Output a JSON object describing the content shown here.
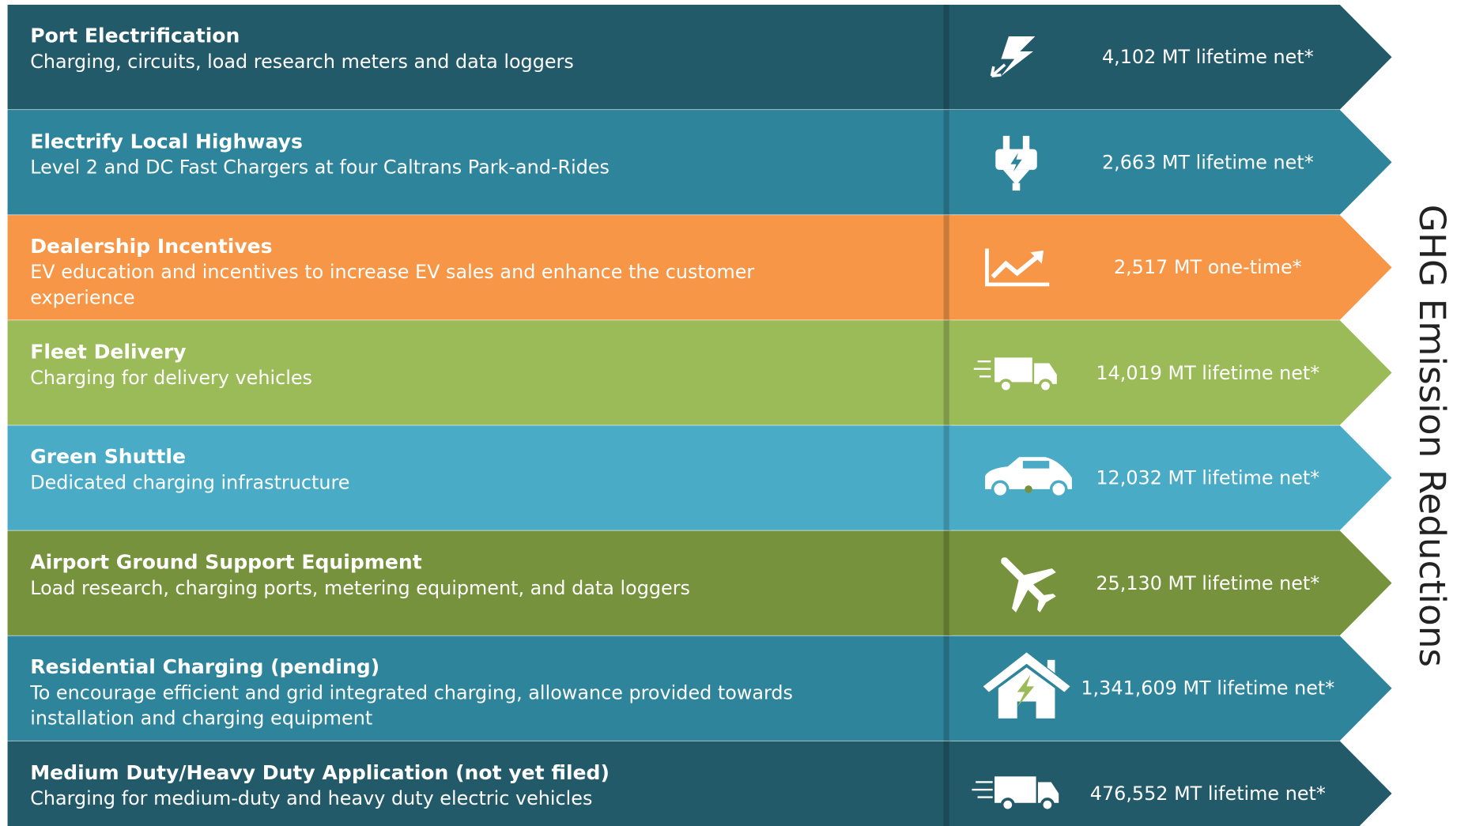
{
  "side_label": "GHG Emission Reductions",
  "rows": [
    {
      "title": "Port Electrification",
      "description": "Charging, circuits, load research meters and data loggers",
      "value": "4,102 MT lifetime net*",
      "color": "#235a6a"
    },
    {
      "title": "Electrify Local Highways",
      "description": "Level 2 and DC Fast Chargers at four Caltrans Park-and-Rides",
      "value": "2,663 MT lifetime net*",
      "color": "#2e849b"
    },
    {
      "title": "Dealership Incentives",
      "description": "EV education and incentives to increase EV sales and enhance the customer experience",
      "value": "2,517 MT one-time*",
      "color": "#f69646"
    },
    {
      "title": "Fleet Delivery",
      "description": "Charging for delivery vehicles",
      "value": "14,019 MT lifetime net*",
      "color": "#9bbb59"
    },
    {
      "title": "Green Shuttle",
      "description": "Dedicated charging infrastructure",
      "value": "12,032 MT lifetime net*",
      "color": "#4aabc6"
    },
    {
      "title": "Airport Ground Support Equipment",
      "description": "Load research, charging ports, metering equipment, and data loggers",
      "value": "25,130 MT lifetime net*",
      "color": "#76923c"
    },
    {
      "title": "Residential Charging (pending)",
      "description": "To encourage efficient and grid integrated charging, allowance provided towards installation and charging equipment",
      "value": "1,341,609 MT lifetime net*",
      "color": "#2e849b"
    },
    {
      "title": "Medium Duty/Heavy Duty Application (not yet filed)",
      "description": "Charging for medium-duty and heavy duty electric vehicles",
      "value": "476,552 MT lifetime net*",
      "color": "#235a6a"
    }
  ]
}
